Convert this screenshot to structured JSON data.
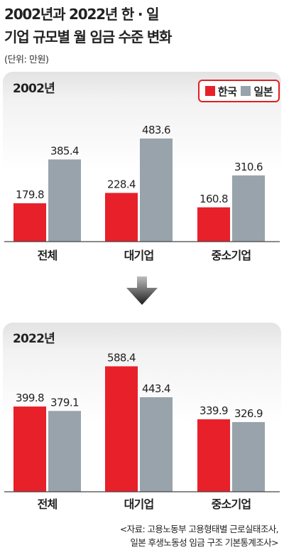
{
  "title_line1": "2002년과 2022년 한 · 일",
  "title_line2": "기업 규모별 월 임금 수준 변화",
  "unit": "(단위: 만원)",
  "colors": {
    "korea": "#e8202a",
    "japan": "#98a3ab"
  },
  "legend": {
    "korea": "한국",
    "japan": "일본"
  },
  "source_line1": "<자료: 고용노동부 고용형태별 근로실태조사,",
  "source_line2": "일본 후생노동성 임금 구조 기본통계조사>",
  "chart_data": [
    {
      "type": "bar",
      "title": "2002년",
      "categories": [
        "전체",
        "대기업",
        "중소기업"
      ],
      "series": [
        {
          "name": "한국",
          "values": [
            179.8,
            228.4,
            160.8
          ]
        },
        {
          "name": "일본",
          "values": [
            385.4,
            483.6,
            310.6
          ]
        }
      ],
      "ylim": [
        0,
        600
      ],
      "grid": false,
      "legend": "top-right"
    },
    {
      "type": "bar",
      "title": "2022년",
      "categories": [
        "전체",
        "대기업",
        "중소기업"
      ],
      "series": [
        {
          "name": "한국",
          "values": [
            399.8,
            588.4,
            339.9
          ]
        },
        {
          "name": "일본",
          "values": [
            379.1,
            443.4,
            326.9
          ]
        }
      ],
      "ylim": [
        0,
        600
      ],
      "grid": false
    }
  ]
}
